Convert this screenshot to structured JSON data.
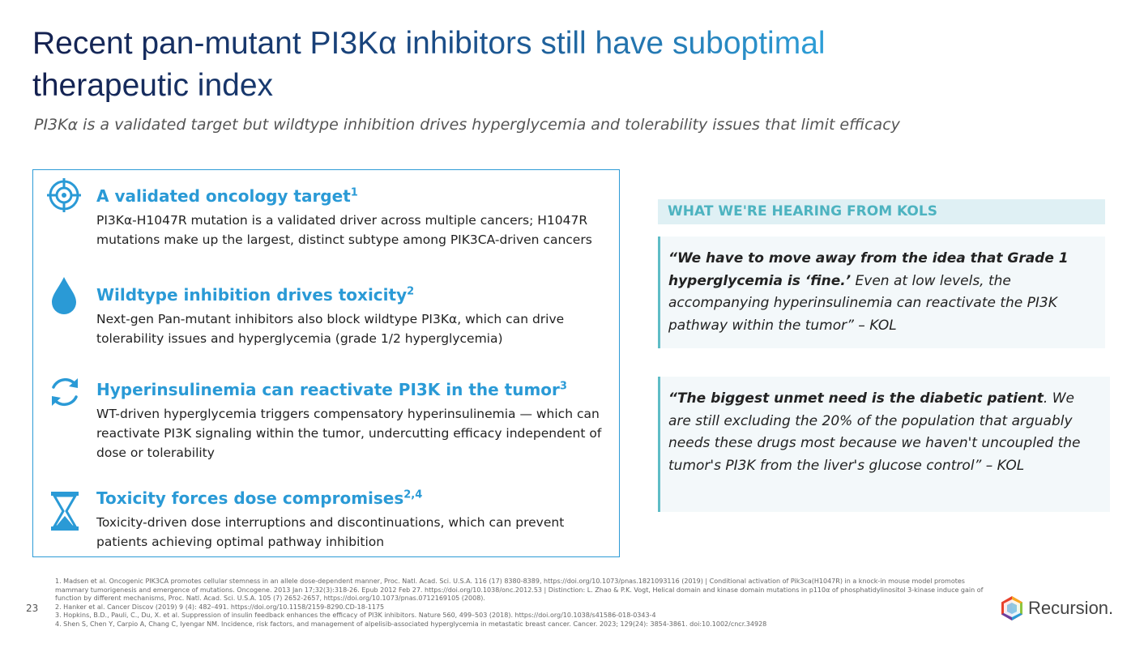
{
  "header": {
    "title": "Recent pan-mutant PI3Kα inhibitors still have suboptimal therapeutic index",
    "subtitle": "PI3Kα is a validated target but wildtype inhibition drives hyperglycemia and tolerability issues that limit efficacy"
  },
  "items": [
    {
      "heading": "A validated oncology target",
      "ref": "1",
      "body": "PI3Kα-H1047R mutation is a validated driver across multiple cancers; H1047R mutations make up the largest, distinct subtype among PIK3CA-driven cancers"
    },
    {
      "heading": "Wildtype inhibition drives toxicity",
      "ref": "2",
      "body": "Next-gen Pan-mutant inhibitors also block wildtype PI3Kα, which can drive tolerability issues and hyperglycemia (grade 1/2 hyperglycemia)"
    },
    {
      "heading": "Hyperinsulinemia can reactivate PI3K in the tumor",
      "ref": "3",
      "body": "WT-driven hyperglycemia triggers compensatory hyperinsulinemia — which can reactivate PI3K signaling within the tumor, undercutting efficacy independent of dose or tolerability"
    },
    {
      "heading": "Toxicity forces dose compromises",
      "ref": "2,4",
      "body": "Toxicity-driven dose interruptions and discontinuations, which can prevent patients achieving optimal pathway inhibition"
    }
  ],
  "kols": {
    "heading": "WHAT WE'RE HEARING FROM KOLS",
    "quotes": [
      {
        "bold": "“We have to move away from the idea that Grade 1 hyperglycemia is ‘fine.’",
        "rest": " Even at low levels, the accompanying hyperinsulinemia can reactivate the PI3K pathway within the tumor”  – KOL"
      },
      {
        "bold": "“The biggest unmet need is the diabetic patient",
        "rest": ". We are still excluding the 20% of the population that arguably needs these drugs most because we haven't uncoupled the tumor's PI3K from the liver's glucose control” – KOL"
      }
    ]
  },
  "footnotes": [
    "1. Madsen et al. Oncogenic PIK3CA promotes cellular stemness in an allele dose-dependent manner, Proc. Natl. Acad. Sci. U.S.A. 116 (17) 8380-8389, https://doi.org/10.1073/pnas.1821093116 (2019) | Conditional activation of Pik3ca(H1047R) in a knock-in mouse model promotes mammary tumorigenesis and emergence of mutations. Oncogene. 2013 Jan 17;32(3):318-26. Epub 2012 Feb 27. https://doi.org/10.1038/onc.2012.53 | Distinction: L. Zhao & P.K. Vogt, Helical domain and kinase domain mutations in p110α of phosphatidylinositol 3-kinase induce gain of function by different mechanisms, Proc. Natl. Acad. Sci. U.S.A. 105 (7) 2652-2657, https://doi.org/10.1073/pnas.0712169105 (2008).",
    "2. Hanker et al. Cancer Discov (2019) 9 (4): 482–491. https://doi.org/10.1158/2159-8290.CD-18-1175",
    "3. Hopkins, B.D., Pauli, C., Du, X. et al. Suppression of insulin feedback enhances the efficacy of PI3K inhibitors. Nature 560, 499–503 (2018). https://doi.org/10.1038/s41586-018-0343-4",
    "4. Shen S, Chen Y, Carpio A, Chang C, Iyengar NM. Incidence, risk factors, and management of alpelisib-associated hyperglycemia in metastatic breast cancer. Cancer. 2023; 129(24): 3854-3861. doi:10.1002/cncr.34928"
  ],
  "footer": {
    "page": "23",
    "logo": "Recursion."
  }
}
